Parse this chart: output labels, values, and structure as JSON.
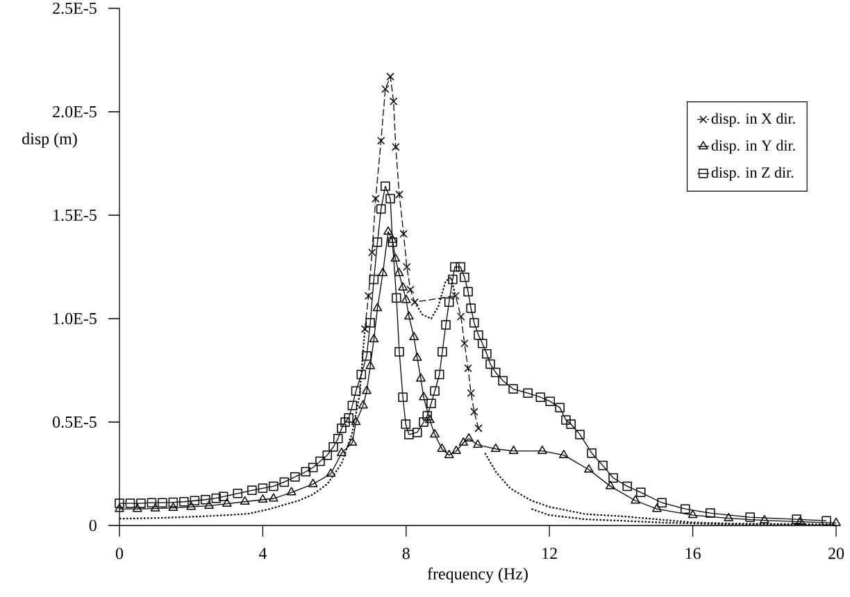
{
  "chart_data": {
    "type": "line",
    "xlabel": "frequency (Hz)",
    "ylabel": "disp (m)",
    "xlim": [
      0,
      20
    ],
    "ylim": [
      0,
      2.5e-05
    ],
    "xticks": [
      0,
      4,
      8,
      12,
      16,
      20
    ],
    "yticks": [
      0,
      {
        "value": 5e-06,
        "label": "0.5E-5"
      },
      {
        "value": 1e-05,
        "label": "1.0E-5"
      },
      {
        "value": 1.5e-05,
        "label": "1.5E-5"
      },
      {
        "value": 2e-05,
        "label": "2.0E-5"
      },
      {
        "value": 2.5e-05,
        "label": "2.5E-5"
      }
    ],
    "grid": false,
    "legend": "top right",
    "series": [
      {
        "name": "disp. in X dir.",
        "color": "#000000",
        "marker": "cross",
        "line_style": "dashed",
        "x": [
          6.85,
          6.95,
          7.05,
          7.15,
          7.3,
          7.42,
          7.56,
          7.65,
          7.71,
          7.81,
          7.93,
          8.02,
          8.12,
          8.24,
          9.38,
          9.53,
          9.63,
          9.73,
          9.81,
          9.9,
          10.02
        ],
        "values": [
          9.5e-06,
          1.11e-05,
          1.32e-05,
          1.58e-05,
          1.86e-05,
          2.11e-05,
          2.17e-05,
          2.05e-05,
          1.83e-05,
          1.6e-05,
          1.41e-05,
          1.25e-05,
          1.14e-05,
          1.08e-05,
          1.11e-05,
          1.01e-05,
          8.8e-06,
          7.6e-06,
          6.4e-06,
          5.5e-06,
          4.7e-06
        ]
      },
      {
        "name": "disp. in Y dir.",
        "color": "#000000",
        "marker": "triangle",
        "line_style": "solid",
        "x": [
          0,
          0.5,
          1,
          1.5,
          2,
          2.5,
          3,
          3.5,
          4,
          4.3,
          4.8,
          5.4,
          5.9,
          6.2,
          6.5,
          6.6,
          6.8,
          6.9,
          7.0,
          7.1,
          7.2,
          7.35,
          7.5,
          7.62,
          7.7,
          7.8,
          7.91,
          8.0,
          8.08,
          8.22,
          8.31,
          8.41,
          8.49,
          8.66,
          8.8,
          9.0,
          9.2,
          9.4,
          9.6,
          9.75,
          10.0,
          10.5,
          11.0,
          11.8,
          12.4,
          13.1,
          13.7,
          14.4,
          15.0,
          16.0,
          17.0,
          18.0,
          19.0,
          20.0
        ],
        "values": [
          8e-07,
          8e-07,
          8.2e-07,
          8.5e-07,
          9e-07,
          9.5e-07,
          1.05e-06,
          1.15e-06,
          1.25e-06,
          1.3e-06,
          1.6e-06,
          2e-06,
          2.5e-06,
          3.5e-06,
          4e-06,
          5e-06,
          5.8e-06,
          6.5e-06,
          7.7e-06,
          9e-06,
          1.05e-05,
          1.22e-05,
          1.42e-05,
          1.38e-05,
          1.29e-05,
          1.22e-05,
          1.15e-05,
          1.09e-05,
          1.01e-05,
          9.1e-06,
          8.1e-06,
          7.1e-06,
          6.2e-06,
          5.1e-06,
          4.4e-06,
          3.7e-06,
          3.4e-06,
          3.6e-06,
          4e-06,
          4.2e-06,
          3.9e-06,
          3.7e-06,
          3.6e-06,
          3.6e-06,
          3.4e-06,
          2.7e-06,
          1.9e-06,
          1.2e-06,
          8e-07,
          5e-07,
          3.5e-07,
          2.5e-07,
          1.8e-07,
          1.2e-07
        ]
      },
      {
        "name": "disp. in Z dir.",
        "color": "#000000",
        "marker": "square",
        "line_style": "solid",
        "x": [
          0,
          0.3,
          0.6,
          0.9,
          1.2,
          1.5,
          1.8,
          2.1,
          2.4,
          2.7,
          2.9,
          3.3,
          3.7,
          4.0,
          4.3,
          4.6,
          4.9,
          5.2,
          5.4,
          5.6,
          5.8,
          5.97,
          6.1,
          6.2,
          6.3,
          6.4,
          6.5,
          6.6,
          6.75,
          6.9,
          7.0,
          7.1,
          7.2,
          7.3,
          7.42,
          7.56,
          7.62,
          7.73,
          7.81,
          7.91,
          7.99,
          8.08,
          8.31,
          8.49,
          8.59,
          8.7,
          8.8,
          8.93,
          9.01,
          9.11,
          9.2,
          9.3,
          9.36,
          9.52,
          9.63,
          9.73,
          9.81,
          9.9,
          10.02,
          10.13,
          10.25,
          10.35,
          10.5,
          10.7,
          10.99,
          11.4,
          11.75,
          12.02,
          12.29,
          12.46,
          12.6,
          12.85,
          13.18,
          13.49,
          13.78,
          14.17,
          14.55,
          15.14,
          15.79,
          16.49,
          17.6,
          18.9,
          19.73
        ],
        "values": [
          1.07e-06,
          1.07e-06,
          1.07e-06,
          1.1e-06,
          1.1e-06,
          1.12e-06,
          1.15e-06,
          1.2e-06,
          1.25e-06,
          1.32e-06,
          1.4e-06,
          1.55e-06,
          1.7e-06,
          1.8e-06,
          1.9e-06,
          2.1e-06,
          2.35e-06,
          2.6e-06,
          2.8e-06,
          3.1e-06,
          3.4e-06,
          3.8e-06,
          4.2e-06,
          4.7e-06,
          5e-06,
          5.2e-06,
          5.8e-06,
          6.5e-06,
          7.3e-06,
          8.2e-06,
          9.8e-06,
          1.19e-05,
          1.37e-05,
          1.53e-05,
          1.64e-05,
          1.58e-05,
          1.37e-05,
          1.1e-05,
          8.4e-06,
          6.2e-06,
          4.9e-06,
          4.4e-06,
          4.5e-06,
          5e-06,
          5.3e-06,
          5.9e-06,
          6.5e-06,
          7.3e-06,
          8.4e-06,
          9.7e-06,
          1.08e-05,
          1.19e-05,
          1.25e-05,
          1.25e-05,
          1.2e-05,
          1.13e-05,
          1.05e-05,
          9.8e-06,
          9.2e-06,
          8.8e-06,
          8.3e-06,
          7.8e-06,
          7.4e-06,
          7e-06,
          6.6e-06,
          6.4e-06,
          6.2e-06,
          6e-06,
          5.7e-06,
          5.1e-06,
          4.9e-06,
          4.4e-06,
          3.5e-06,
          2.9e-06,
          2.3e-06,
          1.9e-06,
          1.6e-06,
          1.1e-06,
          8e-07,
          6e-07,
          4e-07,
          3e-07,
          2.3e-07
        ]
      },
      {
        "color": "#000000",
        "marker": "none",
        "line_style": "dotted",
        "x": [
          0,
          1,
          2,
          3,
          3.6,
          4.2,
          4.6,
          5.0,
          5.4,
          5.8,
          6.2,
          6.5,
          6.7,
          6.85,
          7.5,
          8.24,
          8.45,
          8.7,
          8.9,
          9.1,
          9.25,
          9.38,
          9.7,
          10.2,
          10.5,
          10.9,
          11.5,
          12,
          13,
          14,
          15,
          16,
          17,
          18,
          20
        ],
        "values": [
          3.3e-07,
          3.6e-07,
          4.2e-07,
          5e-07,
          5.7e-07,
          8e-07,
          1e-06,
          1.2e-06,
          1.5e-06,
          2e-06,
          3e-06,
          4.5e-06,
          6.3e-06,
          9.5e-06,
          null,
          1.08e-05,
          1.02e-05,
          1e-05,
          1.06e-05,
          1.18e-05,
          1.2e-05,
          1.11e-05,
          null,
          3.5e-06,
          2.6e-06,
          1.8e-06,
          1.2e-06,
          9e-07,
          5.5e-07,
          4.5e-07,
          3e-07,
          1.5e-07,
          1e-07,
          8e-08,
          5e-08
        ]
      },
      {
        "color": "#000000",
        "marker": "none",
        "line_style": "dotted",
        "x": [
          11.5,
          12,
          13,
          14,
          15,
          16,
          17,
          18,
          20
        ],
        "values": [
          8e-07,
          5e-07,
          3e-07,
          2.3e-07,
          1.5e-07,
          1e-07,
          6e-08,
          5e-08,
          3e-08
        ]
      }
    ]
  }
}
